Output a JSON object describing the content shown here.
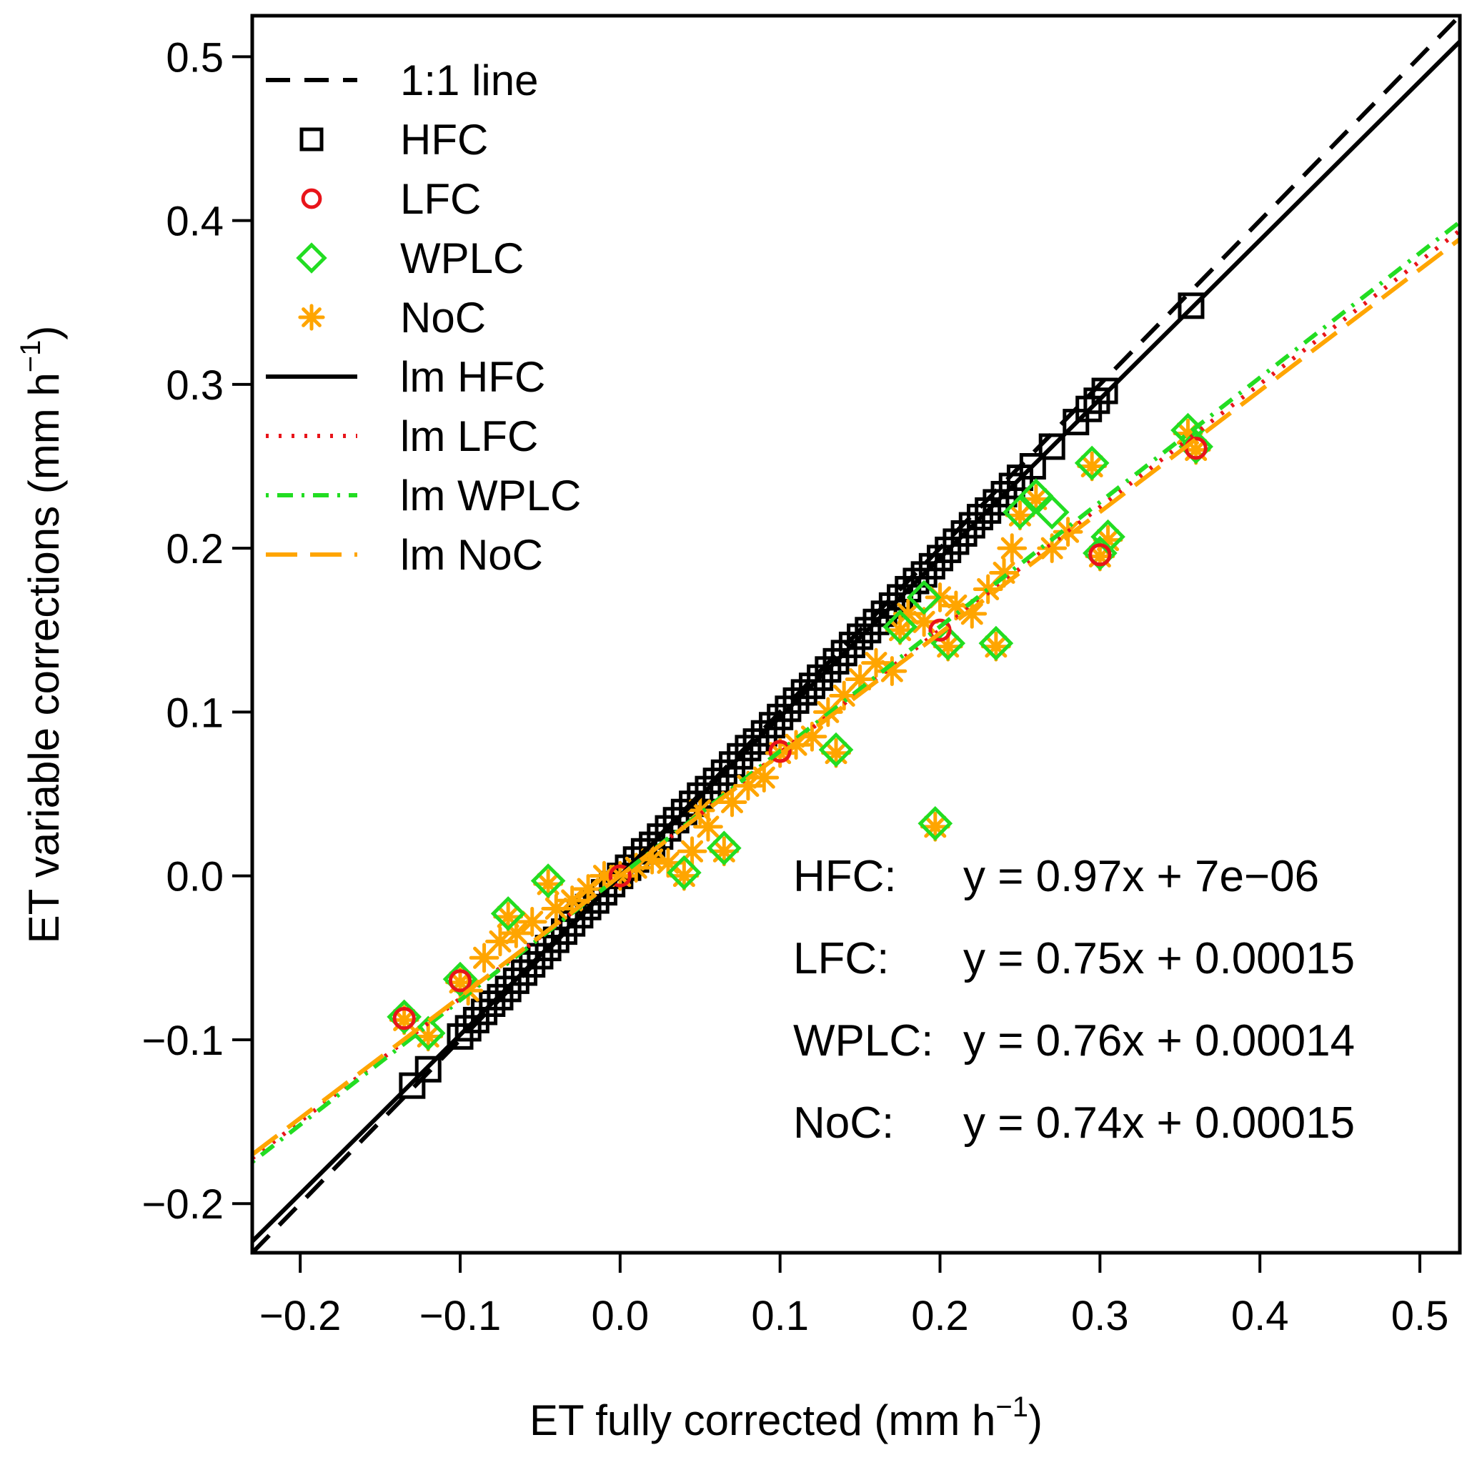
{
  "chart_data": {
    "type": "scatter",
    "xlabel": "ET fully corrected (mm h",
    "xlabel_sup": "−1",
    "xlabel_end": ")",
    "ylabel": "ET variable corrections (mm h",
    "ylabel_sup": "−1",
    "ylabel_end": ")",
    "xlim": [
      -0.23,
      0.525
    ],
    "ylim": [
      -0.23,
      0.525
    ],
    "x_ticks": [
      -0.2,
      -0.1,
      0.0,
      0.1,
      0.2,
      0.3,
      0.4,
      0.5
    ],
    "x_tick_labels": [
      "−0.2",
      "−0.1",
      "0.0",
      "0.1",
      "0.2",
      "0.3",
      "0.4",
      "0.5"
    ],
    "y_ticks": [
      -0.2,
      -0.1,
      0.0,
      0.1,
      0.2,
      0.3,
      0.4,
      0.5
    ],
    "y_tick_labels": [
      "−0.2",
      "−0.1",
      "0.0",
      "0.1",
      "0.2",
      "0.3",
      "0.4",
      "0.5"
    ],
    "grid": false,
    "legend_position": "top-left",
    "legend": [
      {
        "label": "1:1 line",
        "kind": "line",
        "dash": "dashed",
        "color": "#000000"
      },
      {
        "label": "HFC",
        "kind": "marker",
        "marker": "square",
        "color": "#000000"
      },
      {
        "label": "LFC",
        "kind": "marker",
        "marker": "circle",
        "color": "#e8141a"
      },
      {
        "label": "WPLC",
        "kind": "marker",
        "marker": "diamond",
        "color": "#22dd22"
      },
      {
        "label": "NoC",
        "kind": "marker",
        "marker": "asterisk",
        "color": "#ffa500"
      },
      {
        "label": "lm HFC",
        "kind": "line",
        "dash": "solid",
        "color": "#000000"
      },
      {
        "label": "lm LFC",
        "kind": "line",
        "dash": "dotted",
        "color": "#e8141a"
      },
      {
        "label": "lm WPLC",
        "kind": "line",
        "dash": "dotdash",
        "color": "#22dd22"
      },
      {
        "label": "lm NoC",
        "kind": "line",
        "dash": "longdash",
        "color": "#ffa500"
      }
    ],
    "regression_lines": [
      {
        "name": "1:1 line",
        "slope": 1.0,
        "intercept": 0.0,
        "color": "#000000",
        "dash": "dashed"
      },
      {
        "name": "lm HFC",
        "slope": 0.97,
        "intercept": 7e-06,
        "color": "#000000",
        "dash": "solid"
      },
      {
        "name": "lm LFC",
        "slope": 0.75,
        "intercept": 0.00015,
        "color": "#e8141a",
        "dash": "dotted"
      },
      {
        "name": "lm WPLC",
        "slope": 0.76,
        "intercept": 0.00014,
        "color": "#22dd22",
        "dash": "dotdash"
      },
      {
        "name": "lm NoC",
        "slope": 0.74,
        "intercept": 0.00015,
        "color": "#ffa500",
        "dash": "longdash"
      }
    ],
    "equations": [
      {
        "label": "HFC:",
        "eq": "y = 0.97x + 7e−06"
      },
      {
        "label": "LFC:",
        "eq": "y = 0.75x + 0.00015"
      },
      {
        "label": "WPLC:",
        "eq": "y = 0.76x + 0.00014"
      },
      {
        "label": "NoC:",
        "eq": "y = 0.74x + 0.00015"
      }
    ],
    "series": [
      {
        "name": "HFC",
        "marker": "square",
        "color": "#000000",
        "points": [
          [
            -0.13,
            -0.128
          ],
          [
            -0.12,
            -0.118
          ],
          [
            -0.1,
            -0.098
          ],
          [
            -0.095,
            -0.093
          ],
          [
            -0.09,
            -0.088
          ],
          [
            -0.085,
            -0.083
          ],
          [
            -0.08,
            -0.078
          ],
          [
            -0.075,
            -0.074
          ],
          [
            -0.07,
            -0.069
          ],
          [
            -0.065,
            -0.064
          ],
          [
            -0.06,
            -0.059
          ],
          [
            -0.055,
            -0.054
          ],
          [
            -0.05,
            -0.049
          ],
          [
            -0.045,
            -0.044
          ],
          [
            -0.04,
            -0.039
          ],
          [
            -0.035,
            -0.034
          ],
          [
            -0.03,
            -0.029
          ],
          [
            -0.025,
            -0.024
          ],
          [
            -0.02,
            -0.019
          ],
          [
            -0.015,
            -0.015
          ],
          [
            -0.01,
            -0.01
          ],
          [
            -0.005,
            -0.005
          ],
          [
            0.0,
            0.0
          ],
          [
            0.005,
            0.005
          ],
          [
            0.01,
            0.01
          ],
          [
            0.015,
            0.015
          ],
          [
            0.02,
            0.019
          ],
          [
            0.025,
            0.024
          ],
          [
            0.03,
            0.029
          ],
          [
            0.035,
            0.034
          ],
          [
            0.04,
            0.039
          ],
          [
            0.045,
            0.044
          ],
          [
            0.05,
            0.049
          ],
          [
            0.055,
            0.053
          ],
          [
            0.06,
            0.058
          ],
          [
            0.065,
            0.063
          ],
          [
            0.07,
            0.068
          ],
          [
            0.075,
            0.073
          ],
          [
            0.08,
            0.078
          ],
          [
            0.085,
            0.082
          ],
          [
            0.09,
            0.087
          ],
          [
            0.095,
            0.092
          ],
          [
            0.1,
            0.097
          ],
          [
            0.105,
            0.102
          ],
          [
            0.11,
            0.107
          ],
          [
            0.115,
            0.112
          ],
          [
            0.12,
            0.116
          ],
          [
            0.125,
            0.121
          ],
          [
            0.13,
            0.126
          ],
          [
            0.135,
            0.131
          ],
          [
            0.14,
            0.136
          ],
          [
            0.145,
            0.141
          ],
          [
            0.15,
            0.146
          ],
          [
            0.155,
            0.15
          ],
          [
            0.16,
            0.155
          ],
          [
            0.165,
            0.16
          ],
          [
            0.17,
            0.165
          ],
          [
            0.175,
            0.17
          ],
          [
            0.18,
            0.175
          ],
          [
            0.185,
            0.18
          ],
          [
            0.19,
            0.184
          ],
          [
            0.195,
            0.189
          ],
          [
            0.2,
            0.194
          ],
          [
            0.205,
            0.199
          ],
          [
            0.21,
            0.204
          ],
          [
            0.215,
            0.209
          ],
          [
            0.22,
            0.214
          ],
          [
            0.225,
            0.219
          ],
          [
            0.23,
            0.223
          ],
          [
            0.235,
            0.228
          ],
          [
            0.24,
            0.233
          ],
          [
            0.245,
            0.238
          ],
          [
            0.25,
            0.243
          ],
          [
            0.258,
            0.25
          ],
          [
            0.27,
            0.262
          ],
          [
            0.285,
            0.277
          ],
          [
            0.293,
            0.285
          ],
          [
            0.298,
            0.29
          ],
          [
            0.303,
            0.296
          ],
          [
            0.357,
            0.348
          ]
        ]
      },
      {
        "name": "NoC",
        "marker": "asterisk",
        "color": "#ffa500",
        "points": [
          [
            -0.135,
            -0.088
          ],
          [
            -0.12,
            -0.098
          ],
          [
            -0.1,
            -0.065
          ],
          [
            -0.095,
            -0.07
          ],
          [
            -0.085,
            -0.05
          ],
          [
            -0.075,
            -0.04
          ],
          [
            -0.07,
            -0.025
          ],
          [
            -0.065,
            -0.035
          ],
          [
            -0.055,
            -0.028
          ],
          [
            -0.045,
            -0.005
          ],
          [
            -0.04,
            -0.02
          ],
          [
            -0.03,
            -0.015
          ],
          [
            -0.02,
            -0.008
          ],
          [
            -0.01,
            0.0
          ],
          [
            0.0,
            0.0
          ],
          [
            0.01,
            0.005
          ],
          [
            0.02,
            0.01
          ],
          [
            0.03,
            0.008
          ],
          [
            0.04,
            0.0
          ],
          [
            0.045,
            0.015
          ],
          [
            0.05,
            0.04
          ],
          [
            0.055,
            0.03
          ],
          [
            0.065,
            0.015
          ],
          [
            0.07,
            0.045
          ],
          [
            0.08,
            0.055
          ],
          [
            0.09,
            0.06
          ],
          [
            0.1,
            0.075
          ],
          [
            0.11,
            0.08
          ],
          [
            0.12,
            0.085
          ],
          [
            0.13,
            0.1
          ],
          [
            0.135,
            0.075
          ],
          [
            0.14,
            0.11
          ],
          [
            0.15,
            0.12
          ],
          [
            0.16,
            0.13
          ],
          [
            0.17,
            0.125
          ],
          [
            0.175,
            0.15
          ],
          [
            0.18,
            0.16
          ],
          [
            0.19,
            0.155
          ],
          [
            0.2,
            0.17
          ],
          [
            0.205,
            0.14
          ],
          [
            0.21,
            0.165
          ],
          [
            0.22,
            0.16
          ],
          [
            0.23,
            0.175
          ],
          [
            0.235,
            0.14
          ],
          [
            0.24,
            0.185
          ],
          [
            0.245,
            0.2
          ],
          [
            0.25,
            0.22
          ],
          [
            0.26,
            0.23
          ],
          [
            0.27,
            0.2
          ],
          [
            0.28,
            0.21
          ],
          [
            0.295,
            0.25
          ],
          [
            0.3,
            0.195
          ],
          [
            0.305,
            0.205
          ],
          [
            0.355,
            0.27
          ],
          [
            0.36,
            0.26
          ],
          [
            0.197,
            0.03
          ]
        ]
      },
      {
        "name": "WPLC",
        "marker": "diamond",
        "color": "#22dd22",
        "points": [
          [
            -0.135,
            -0.086
          ],
          [
            -0.12,
            -0.096
          ],
          [
            -0.1,
            -0.063
          ],
          [
            -0.07,
            -0.023
          ],
          [
            -0.045,
            -0.003
          ],
          [
            0.04,
            0.002
          ],
          [
            0.065,
            0.017
          ],
          [
            0.135,
            0.077
          ],
          [
            0.175,
            0.152
          ],
          [
            0.19,
            0.17
          ],
          [
            0.205,
            0.142
          ],
          [
            0.235,
            0.142
          ],
          [
            0.25,
            0.222
          ],
          [
            0.26,
            0.232
          ],
          [
            0.27,
            0.222
          ],
          [
            0.295,
            0.252
          ],
          [
            0.3,
            0.197
          ],
          [
            0.305,
            0.207
          ],
          [
            0.355,
            0.272
          ],
          [
            0.36,
            0.262
          ],
          [
            0.197,
            0.032
          ]
        ]
      },
      {
        "name": "LFC",
        "marker": "circle",
        "color": "#e8141a",
        "points": [
          [
            -0.135,
            -0.087
          ],
          [
            -0.1,
            -0.064
          ],
          [
            0.0,
            0.0
          ],
          [
            0.1,
            0.076
          ],
          [
            0.2,
            0.15
          ],
          [
            0.3,
            0.196
          ],
          [
            0.36,
            0.261
          ]
        ]
      }
    ]
  }
}
